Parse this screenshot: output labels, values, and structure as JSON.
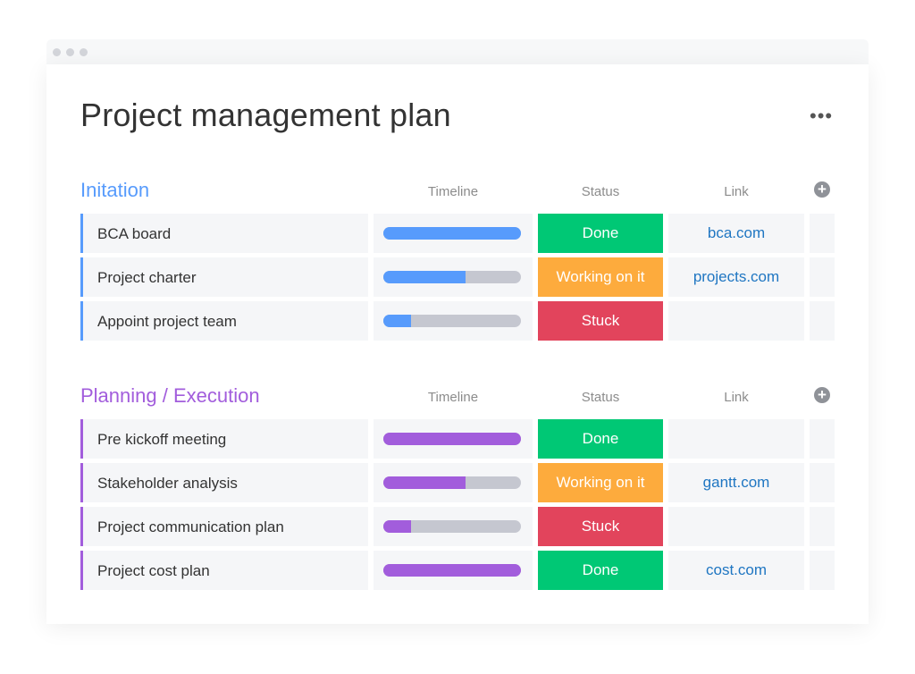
{
  "title": "Project management plan",
  "more_icon": "more-horizontal-icon",
  "columns": {
    "timeline": "Timeline",
    "status": "Status",
    "link": "Link"
  },
  "colors": {
    "done": "#00c875",
    "working": "#fdab3d",
    "stuck": "#e2445c",
    "link": "#1f76c2",
    "track": "#c5c7d0"
  },
  "groups": [
    {
      "name": "Initation",
      "color": "#579bfc",
      "rows": [
        {
          "name": "BCA board",
          "progress": 1.0,
          "status": "Done",
          "status_key": "done",
          "link": "bca.com"
        },
        {
          "name": "Project charter",
          "progress": 0.6,
          "status": "Working on it",
          "status_key": "working",
          "link": "projects.com"
        },
        {
          "name": "Appoint project team",
          "progress": 0.2,
          "status": "Stuck",
          "status_key": "stuck",
          "link": ""
        }
      ]
    },
    {
      "name": "Planning / Execution",
      "color": "#a25ddc",
      "rows": [
        {
          "name": "Pre kickoff meeting",
          "progress": 1.0,
          "status": "Done",
          "status_key": "done",
          "link": ""
        },
        {
          "name": "Stakeholder analysis",
          "progress": 0.6,
          "status": "Working on it",
          "status_key": "working",
          "link": "gantt.com"
        },
        {
          "name": "Project communication plan",
          "progress": 0.2,
          "status": "Stuck",
          "status_key": "stuck",
          "link": ""
        },
        {
          "name": "Project cost plan",
          "progress": 1.0,
          "status": "Done",
          "status_key": "done",
          "link": "cost.com"
        }
      ]
    }
  ]
}
